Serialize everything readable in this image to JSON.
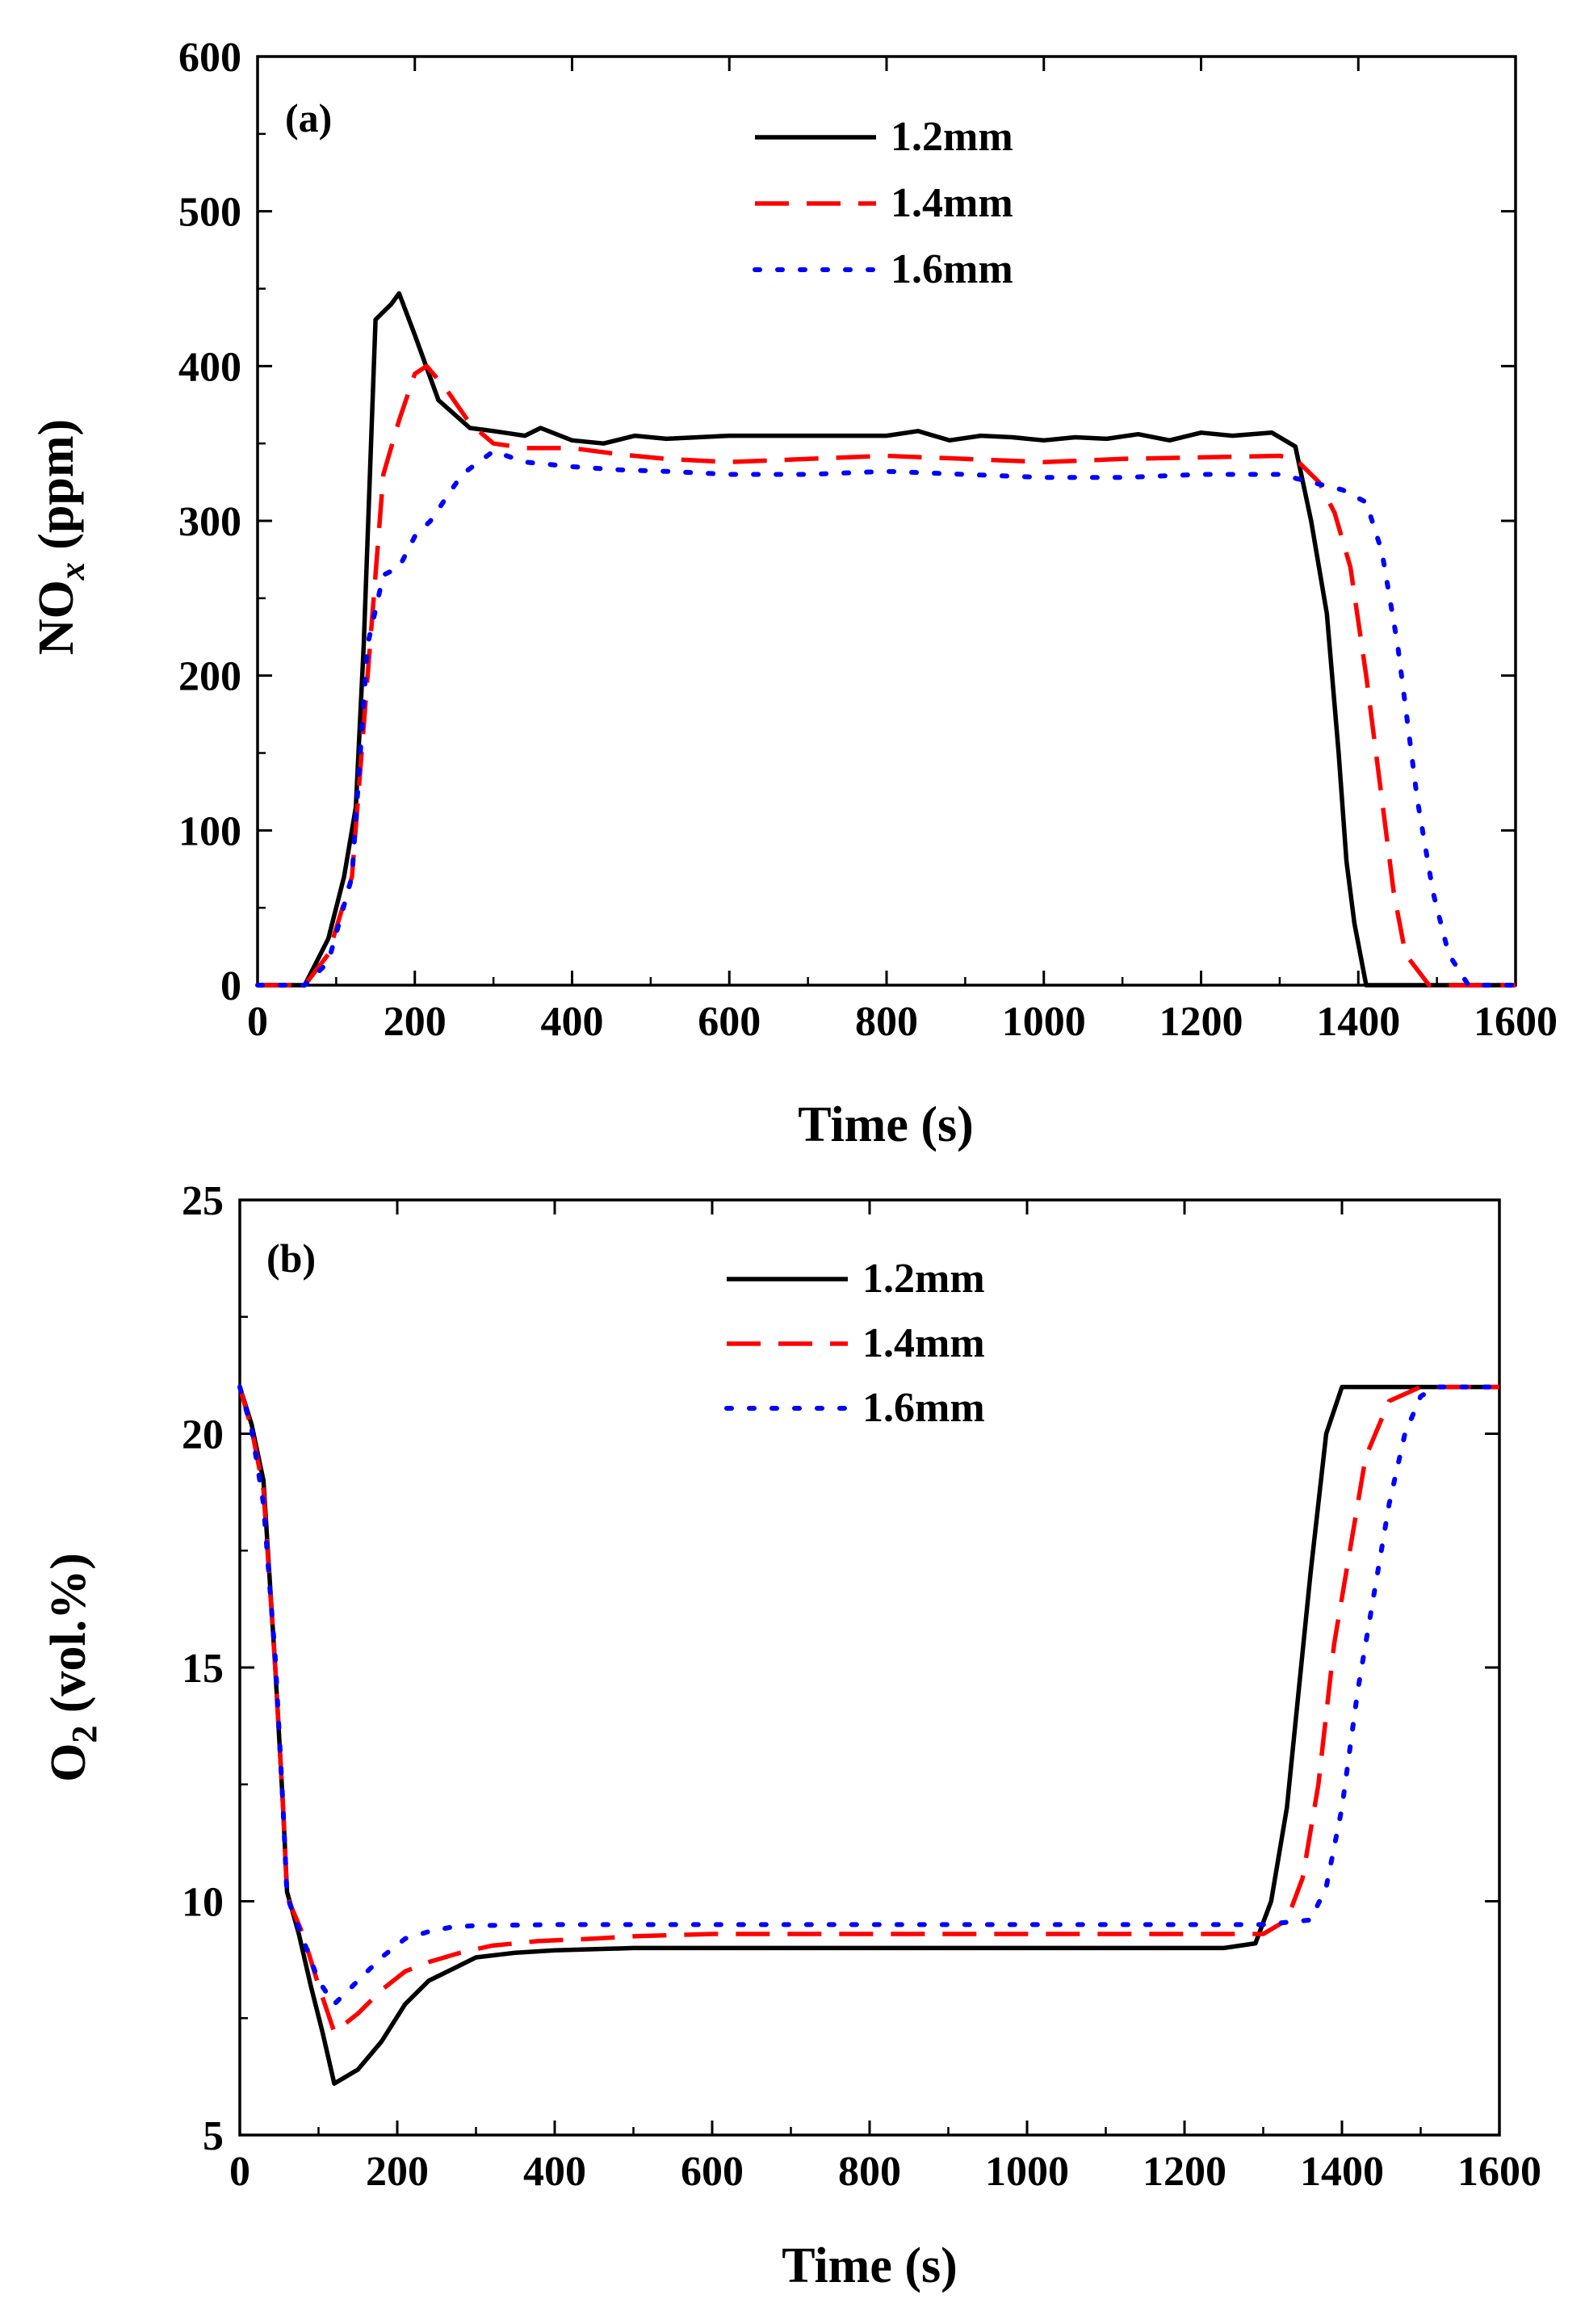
{
  "chart_data": [
    {
      "type": "line",
      "panel_label": "(a)",
      "title": "",
      "xlabel": "Time (s)",
      "ylabel_main": "NO",
      "ylabel_sub": "x",
      "ylabel_tail": " (ppm)",
      "xlim": [
        0,
        1600
      ],
      "ylim": [
        0,
        600
      ],
      "xticks": [
        0,
        200,
        400,
        600,
        800,
        1000,
        1200,
        1400,
        1600
      ],
      "yticks": [
        0,
        100,
        200,
        300,
        400,
        500,
        600
      ],
      "xtick_labels": [
        "0",
        "200",
        "400",
        "600",
        "800",
        "1000",
        "1200",
        "1400",
        "1600"
      ],
      "ytick_labels": [
        "0",
        "100",
        "200",
        "300",
        "400",
        "500",
        "600"
      ],
      "grid": false,
      "legend_position": "top-center",
      "series": [
        {
          "name": "1.2mm",
          "color": "#000000",
          "dash": "solid",
          "points": [
            [
              0,
              0
            ],
            [
              60,
              0
            ],
            [
              90,
              30
            ],
            [
              110,
              70
            ],
            [
              125,
              115
            ],
            [
              135,
              220
            ],
            [
              150,
              430
            ],
            [
              170,
              440
            ],
            [
              180,
              447
            ],
            [
              200,
              420
            ],
            [
              230,
              378
            ],
            [
              270,
              360
            ],
            [
              300,
              358
            ],
            [
              340,
              355
            ],
            [
              360,
              360
            ],
            [
              400,
              352
            ],
            [
              440,
              350
            ],
            [
              480,
              355
            ],
            [
              520,
              353
            ],
            [
              600,
              355
            ],
            [
              700,
              355
            ],
            [
              800,
              355
            ],
            [
              840,
              358
            ],
            [
              880,
              352
            ],
            [
              920,
              355
            ],
            [
              960,
              354
            ],
            [
              1000,
              352
            ],
            [
              1040,
              354
            ],
            [
              1080,
              353
            ],
            [
              1120,
              356
            ],
            [
              1160,
              352
            ],
            [
              1200,
              357
            ],
            [
              1240,
              355
            ],
            [
              1290,
              357
            ],
            [
              1320,
              348
            ],
            [
              1340,
              300
            ],
            [
              1360,
              240
            ],
            [
              1375,
              150
            ],
            [
              1385,
              80
            ],
            [
              1395,
              40
            ],
            [
              1410,
              0
            ],
            [
              1600,
              0
            ]
          ]
        },
        {
          "name": "1.4mm",
          "color": "#ff0000",
          "dash": "long-dash",
          "points": [
            [
              0,
              0
            ],
            [
              60,
              0
            ],
            [
              90,
              20
            ],
            [
              120,
              70
            ],
            [
              140,
              200
            ],
            [
              160,
              330
            ],
            [
              180,
              365
            ],
            [
              200,
              395
            ],
            [
              215,
              400
            ],
            [
              240,
              385
            ],
            [
              270,
              363
            ],
            [
              300,
              350
            ],
            [
              340,
              347
            ],
            [
              400,
              347
            ],
            [
              460,
              343
            ],
            [
              520,
              340
            ],
            [
              600,
              338
            ],
            [
              700,
              340
            ],
            [
              800,
              342
            ],
            [
              900,
              340
            ],
            [
              1000,
              338
            ],
            [
              1100,
              340
            ],
            [
              1200,
              341
            ],
            [
              1300,
              342
            ],
            [
              1320,
              340
            ],
            [
              1350,
              325
            ],
            [
              1370,
              305
            ],
            [
              1390,
              270
            ],
            [
              1410,
              200
            ],
            [
              1430,
              120
            ],
            [
              1445,
              60
            ],
            [
              1460,
              20
            ],
            [
              1490,
              0
            ],
            [
              1600,
              0
            ]
          ]
        },
        {
          "name": "1.6mm",
          "color": "#0000ff",
          "dash": "dotted",
          "points": [
            [
              0,
              0
            ],
            [
              60,
              0
            ],
            [
              90,
              15
            ],
            [
              120,
              70
            ],
            [
              140,
              220
            ],
            [
              160,
              265
            ],
            [
              180,
              270
            ],
            [
              200,
              290
            ],
            [
              220,
              300
            ],
            [
              260,
              330
            ],
            [
              300,
              345
            ],
            [
              340,
              338
            ],
            [
              400,
              335
            ],
            [
              460,
              333
            ],
            [
              520,
              332
            ],
            [
              600,
              330
            ],
            [
              700,
              330
            ],
            [
              800,
              332
            ],
            [
              900,
              330
            ],
            [
              1000,
              328
            ],
            [
              1100,
              328
            ],
            [
              1200,
              330
            ],
            [
              1300,
              330
            ],
            [
              1340,
              325
            ],
            [
              1380,
              320
            ],
            [
              1410,
              312
            ],
            [
              1430,
              280
            ],
            [
              1450,
              220
            ],
            [
              1475,
              120
            ],
            [
              1495,
              60
            ],
            [
              1515,
              20
            ],
            [
              1540,
              0
            ],
            [
              1600,
              0
            ]
          ]
        }
      ]
    },
    {
      "type": "line",
      "panel_label": "(b)",
      "title": "",
      "xlabel": "Time (s)",
      "ylabel_main": "O",
      "ylabel_sub": "2",
      "ylabel_tail": " (vol.%)",
      "xlim": [
        0,
        1600
      ],
      "ylim": [
        5,
        25
      ],
      "xticks": [
        0,
        200,
        400,
        600,
        800,
        1000,
        1200,
        1400,
        1600
      ],
      "yticks": [
        5,
        10,
        15,
        20,
        25
      ],
      "xtick_labels": [
        "0",
        "200",
        "400",
        "600",
        "800",
        "1000",
        "1200",
        "1400",
        "1600"
      ],
      "ytick_labels": [
        "5",
        "10",
        "15",
        "20",
        "25"
      ],
      "grid": false,
      "legend_position": "top-center",
      "series": [
        {
          "name": "1.2mm",
          "color": "#000000",
          "dash": "solid",
          "points": [
            [
              0,
              21
            ],
            [
              15,
              20.2
            ],
            [
              30,
              19
            ],
            [
              45,
              15
            ],
            [
              55,
              12
            ],
            [
              60,
              10.2
            ],
            [
              75,
              9.3
            ],
            [
              90,
              8.2
            ],
            [
              105,
              7.2
            ],
            [
              120,
              6.1
            ],
            [
              150,
              6.4
            ],
            [
              180,
              7
            ],
            [
              210,
              7.8
            ],
            [
              240,
              8.3
            ],
            [
              270,
              8.55
            ],
            [
              300,
              8.8
            ],
            [
              350,
              8.9
            ],
            [
              400,
              8.95
            ],
            [
              500,
              9
            ],
            [
              600,
              9
            ],
            [
              700,
              9
            ],
            [
              800,
              9
            ],
            [
              900,
              9
            ],
            [
              1000,
              9
            ],
            [
              1100,
              9
            ],
            [
              1200,
              9
            ],
            [
              1250,
              9
            ],
            [
              1290,
              9.1
            ],
            [
              1310,
              10
            ],
            [
              1330,
              12
            ],
            [
              1345,
              14.5
            ],
            [
              1360,
              17
            ],
            [
              1380,
              20
            ],
            [
              1400,
              21
            ],
            [
              1600,
              21
            ]
          ]
        },
        {
          "name": "1.4mm",
          "color": "#ff0000",
          "dash": "long-dash",
          "points": [
            [
              0,
              21
            ],
            [
              15,
              20.1
            ],
            [
              30,
              18.8
            ],
            [
              45,
              15
            ],
            [
              55,
              12
            ],
            [
              60,
              10.1
            ],
            [
              80,
              9.3
            ],
            [
              100,
              8.2
            ],
            [
              120,
              7.2
            ],
            [
              150,
              7.6
            ],
            [
              180,
              8.1
            ],
            [
              210,
              8.5
            ],
            [
              240,
              8.7
            ],
            [
              280,
              8.9
            ],
            [
              320,
              9.05
            ],
            [
              380,
              9.15
            ],
            [
              450,
              9.2
            ],
            [
              500,
              9.25
            ],
            [
              600,
              9.3
            ],
            [
              700,
              9.3
            ],
            [
              800,
              9.3
            ],
            [
              900,
              9.3
            ],
            [
              1000,
              9.3
            ],
            [
              1100,
              9.3
            ],
            [
              1200,
              9.3
            ],
            [
              1300,
              9.3
            ],
            [
              1330,
              9.6
            ],
            [
              1350,
              10.5
            ],
            [
              1370,
              12.5
            ],
            [
              1390,
              15.5
            ],
            [
              1410,
              17.5
            ],
            [
              1430,
              19.5
            ],
            [
              1460,
              20.7
            ],
            [
              1500,
              21
            ],
            [
              1600,
              21
            ]
          ]
        },
        {
          "name": "1.6mm",
          "color": "#0000ff",
          "dash": "dotted",
          "points": [
            [
              0,
              21
            ],
            [
              15,
              20.1
            ],
            [
              30,
              18.5
            ],
            [
              45,
              15.2
            ],
            [
              55,
              12
            ],
            [
              60,
              10.1
            ],
            [
              80,
              9.2
            ],
            [
              100,
              8.3
            ],
            [
              120,
              7.8
            ],
            [
              150,
              8.3
            ],
            [
              180,
              8.8
            ],
            [
              210,
              9.2
            ],
            [
              240,
              9.35
            ],
            [
              270,
              9.45
            ],
            [
              300,
              9.48
            ],
            [
              400,
              9.5
            ],
            [
              500,
              9.5
            ],
            [
              600,
              9.5
            ],
            [
              700,
              9.5
            ],
            [
              800,
              9.5
            ],
            [
              900,
              9.5
            ],
            [
              1000,
              9.5
            ],
            [
              1100,
              9.5
            ],
            [
              1200,
              9.5
            ],
            [
              1300,
              9.5
            ],
            [
              1360,
              9.6
            ],
            [
              1380,
              10.3
            ],
            [
              1400,
              12
            ],
            [
              1420,
              14.5
            ],
            [
              1440,
              16.5
            ],
            [
              1460,
              18.5
            ],
            [
              1480,
              20
            ],
            [
              1500,
              20.8
            ],
            [
              1520,
              21
            ],
            [
              1600,
              21
            ]
          ]
        }
      ]
    }
  ]
}
